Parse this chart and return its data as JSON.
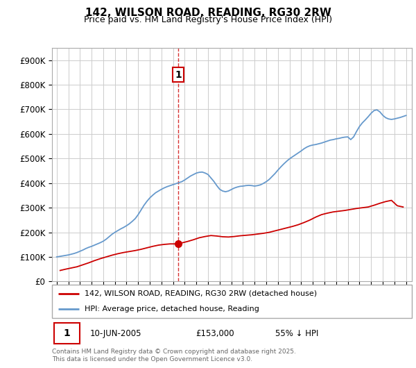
{
  "title": "142, WILSON ROAD, READING, RG30 2RW",
  "subtitle": "Price paid vs. HM Land Registry's House Price Index (HPI)",
  "ytick_values": [
    0,
    100000,
    200000,
    300000,
    400000,
    500000,
    600000,
    700000,
    800000,
    900000
  ],
  "ylim": [
    0,
    950000
  ],
  "xlim_start": 1994.6,
  "xlim_end": 2025.5,
  "legend1": "142, WILSON ROAD, READING, RG30 2RW (detached house)",
  "legend2": "HPI: Average price, detached house, Reading",
  "annotation_label": "1",
  "annotation_date": "10-JUN-2005",
  "annotation_price": "£153,000",
  "annotation_hpi": "55% ↓ HPI",
  "vline_x": 2005.44,
  "marker_x": 2005.44,
  "marker_y": 153000,
  "footnote1": "Contains HM Land Registry data © Crown copyright and database right 2025.",
  "footnote2": "This data is licensed under the Open Government Licence v3.0.",
  "red_color": "#cc0000",
  "blue_color": "#6699cc",
  "background_color": "#ffffff",
  "grid_color": "#cccccc",
  "hpi_x": [
    1995.0,
    1995.25,
    1995.5,
    1995.75,
    1996.0,
    1996.25,
    1996.5,
    1996.75,
    1997.0,
    1997.25,
    1997.5,
    1997.75,
    1998.0,
    1998.25,
    1998.5,
    1998.75,
    1999.0,
    1999.25,
    1999.5,
    1999.75,
    2000.0,
    2000.25,
    2000.5,
    2000.75,
    2001.0,
    2001.25,
    2001.5,
    2001.75,
    2002.0,
    2002.25,
    2002.5,
    2002.75,
    2003.0,
    2003.25,
    2003.5,
    2003.75,
    2004.0,
    2004.25,
    2004.5,
    2004.75,
    2005.0,
    2005.25,
    2005.5,
    2005.75,
    2006.0,
    2006.25,
    2006.5,
    2006.75,
    2007.0,
    2007.25,
    2007.5,
    2007.75,
    2008.0,
    2008.25,
    2008.5,
    2008.75,
    2009.0,
    2009.25,
    2009.5,
    2009.75,
    2010.0,
    2010.25,
    2010.5,
    2010.75,
    2011.0,
    2011.25,
    2011.5,
    2011.75,
    2012.0,
    2012.25,
    2012.5,
    2012.75,
    2013.0,
    2013.25,
    2013.5,
    2013.75,
    2014.0,
    2014.25,
    2014.5,
    2014.75,
    2015.0,
    2015.25,
    2015.5,
    2015.75,
    2016.0,
    2016.25,
    2016.5,
    2016.75,
    2017.0,
    2017.25,
    2017.5,
    2017.75,
    2018.0,
    2018.25,
    2018.5,
    2018.75,
    2019.0,
    2019.25,
    2019.5,
    2019.75,
    2020.0,
    2020.25,
    2020.5,
    2020.75,
    2021.0,
    2021.25,
    2021.5,
    2021.75,
    2022.0,
    2022.25,
    2022.5,
    2022.75,
    2023.0,
    2023.25,
    2023.5,
    2023.75,
    2024.0,
    2024.25,
    2024.5,
    2024.75,
    2025.0
  ],
  "hpi_y": [
    100000,
    102000,
    104000,
    106000,
    108000,
    111000,
    114000,
    118000,
    123000,
    128000,
    134000,
    139000,
    143000,
    148000,
    153000,
    158000,
    164000,
    172000,
    182000,
    192000,
    200000,
    207000,
    214000,
    220000,
    227000,
    235000,
    245000,
    256000,
    272000,
    291000,
    310000,
    326000,
    340000,
    351000,
    361000,
    368000,
    375000,
    381000,
    386000,
    390000,
    394000,
    398000,
    402000,
    406000,
    413000,
    421000,
    429000,
    435000,
    441000,
    444000,
    445000,
    441000,
    435000,
    421000,
    407000,
    390000,
    375000,
    368000,
    365000,
    368000,
    374000,
    380000,
    384000,
    387000,
    388000,
    390000,
    391000,
    390000,
    388000,
    390000,
    393000,
    399000,
    406000,
    415000,
    427000,
    439000,
    453000,
    466000,
    478000,
    489000,
    499000,
    507000,
    515000,
    523000,
    531000,
    540000,
    547000,
    552000,
    555000,
    557000,
    560000,
    563000,
    567000,
    571000,
    575000,
    577000,
    580000,
    582000,
    585000,
    587000,
    588000,
    577000,
    588000,
    610000,
    630000,
    645000,
    657000,
    670000,
    684000,
    695000,
    698000,
    690000,
    676000,
    666000,
    661000,
    659000,
    661000,
    664000,
    667000,
    671000,
    675000
  ],
  "red_x": [
    1995.3,
    1995.75,
    1996.25,
    1996.75,
    1997.25,
    1997.75,
    1998.25,
    1998.75,
    1999.25,
    1999.75,
    2000.25,
    2000.75,
    2001.25,
    2001.75,
    2002.25,
    2002.75,
    2003.25,
    2003.75,
    2004.25,
    2004.75,
    2005.0,
    2005.44,
    2005.75,
    2006.25,
    2006.75,
    2007.25,
    2007.75,
    2008.25,
    2008.75,
    2009.25,
    2009.75,
    2010.25,
    2010.75,
    2011.25,
    2011.75,
    2012.25,
    2012.75,
    2013.25,
    2013.75,
    2014.25,
    2014.75,
    2015.25,
    2015.75,
    2016.25,
    2016.75,
    2017.25,
    2017.75,
    2018.25,
    2018.75,
    2019.25,
    2019.75,
    2020.25,
    2020.75,
    2021.25,
    2021.75,
    2022.25,
    2022.75,
    2023.25,
    2023.75,
    2024.25,
    2024.75
  ],
  "red_y": [
    45000,
    50000,
    55000,
    60000,
    68000,
    76000,
    85000,
    93000,
    100000,
    107000,
    113000,
    118000,
    122000,
    126000,
    131000,
    137000,
    143000,
    148000,
    151000,
    153000,
    153000,
    153000,
    157000,
    163000,
    170000,
    178000,
    183000,
    187000,
    185000,
    182000,
    181000,
    183000,
    186000,
    188000,
    190000,
    193000,
    196000,
    200000,
    206000,
    212000,
    218000,
    224000,
    231000,
    240000,
    250000,
    262000,
    272000,
    278000,
    283000,
    286000,
    289000,
    293000,
    297000,
    300000,
    303000,
    310000,
    318000,
    325000,
    330000,
    308000,
    303000
  ]
}
